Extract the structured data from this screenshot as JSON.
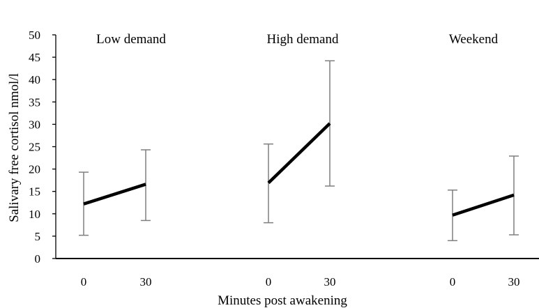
{
  "chart_data": {
    "type": "line",
    "ylabel": "Salivary free  cortisol nmol/l",
    "xlabel": "Minutes post awakening",
    "ylim": [
      0,
      50
    ],
    "yticks": [
      0,
      5,
      10,
      15,
      20,
      25,
      30,
      35,
      40,
      45,
      50
    ],
    "grid": false,
    "colors": {
      "line": "#000000",
      "error_bar": "#7f7f7f",
      "axis": "#000000"
    },
    "panels": [
      {
        "title": "Low demand",
        "x": [
          "0",
          "30"
        ],
        "y": [
          12.2,
          16.6
        ],
        "y_err_low": [
          5.2,
          8.5
        ],
        "y_err_high": [
          19.3,
          24.3
        ]
      },
      {
        "title": "High demand",
        "x": [
          "0",
          "30"
        ],
        "y": [
          16.9,
          30.2
        ],
        "y_err_low": [
          8.0,
          16.2
        ],
        "y_err_high": [
          25.6,
          44.2
        ]
      },
      {
        "title": "Weekend",
        "x": [
          "0",
          "30"
        ],
        "y": [
          9.7,
          14.2
        ],
        "y_err_low": [
          4.0,
          5.3
        ],
        "y_err_high": [
          15.3,
          22.9
        ]
      }
    ]
  }
}
